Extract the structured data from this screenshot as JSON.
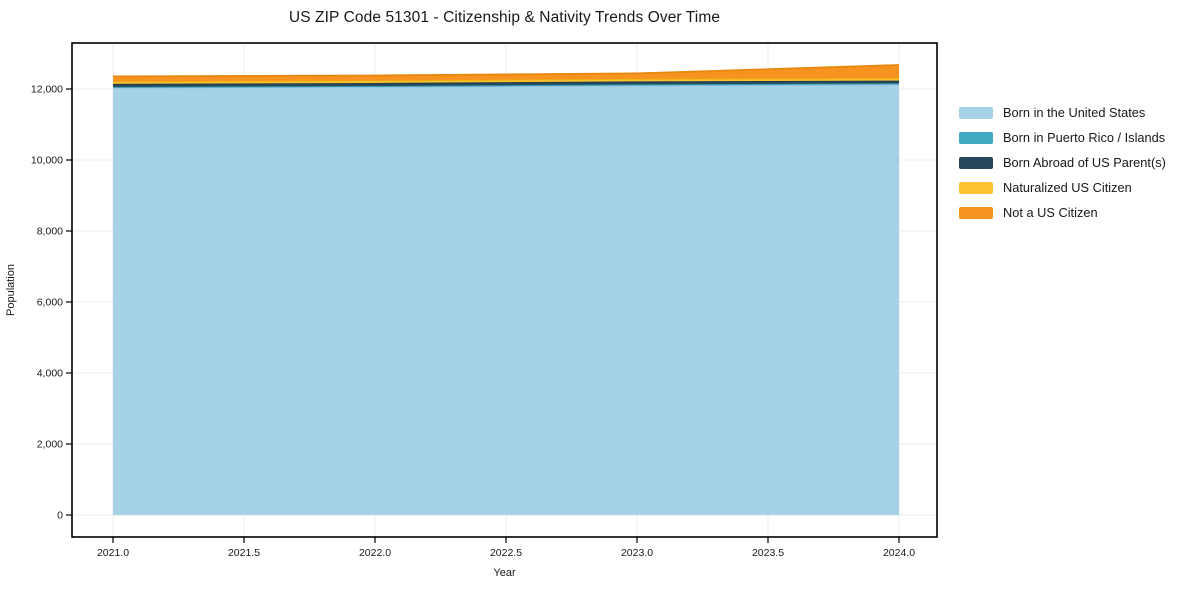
{
  "chart_data": {
    "type": "area",
    "stacked": true,
    "title": "US ZIP Code 51301 - Citizenship & Nativity Trends Over Time",
    "xlabel": "Year",
    "ylabel": "Population",
    "x": [
      2021,
      2022,
      2023,
      2024
    ],
    "xticks": [
      {
        "label": "2021.0",
        "value": 2021.0
      },
      {
        "label": "2021.5",
        "value": 2021.5
      },
      {
        "label": "2022.0",
        "value": 2022.0
      },
      {
        "label": "2022.5",
        "value": 2022.5
      },
      {
        "label": "2023.0",
        "value": 2023.0
      },
      {
        "label": "2023.5",
        "value": 2023.5
      },
      {
        "label": "2024.0",
        "value": 2024.0
      }
    ],
    "yticks": [
      {
        "label": "0",
        "value": 0
      },
      {
        "label": "2,000",
        "value": 2000
      },
      {
        "label": "4,000",
        "value": 4000
      },
      {
        "label": "6,000",
        "value": 6000
      },
      {
        "label": "8,000",
        "value": 8000
      },
      {
        "label": "10,000",
        "value": 10000
      },
      {
        "label": "12,000",
        "value": 12000
      }
    ],
    "xlim": [
      2020.84,
      2024.15
    ],
    "ylim": [
      -620,
      13300
    ],
    "grid": true,
    "grid_color": "#ececec",
    "frame_color": "#000000",
    "legend_position": "right-outside",
    "series": [
      {
        "name": "Born in the United States",
        "color": "#a6d2e6",
        "edge": "#8ec4de",
        "values": [
          12040,
          12060,
          12100,
          12130
        ]
      },
      {
        "name": "Born in Puerto Rico / Islands",
        "color": "#3fa9c2",
        "edge": "#3797ae",
        "values": [
          20,
          25,
          30,
          30
        ]
      },
      {
        "name": "Born Abroad of US Parent(s)",
        "color": "#26495c",
        "edge": "#203d4d",
        "values": [
          85,
          85,
          85,
          75
        ]
      },
      {
        "name": "Naturalized US Citizen",
        "color": "#fcc32e",
        "edge": "#edb113",
        "values": [
          70,
          70,
          70,
          70
        ]
      },
      {
        "name": "Not a US Citizen",
        "color": "#f79421",
        "edge": "#e8860e",
        "values": [
          140,
          140,
          155,
          370
        ]
      }
    ]
  }
}
